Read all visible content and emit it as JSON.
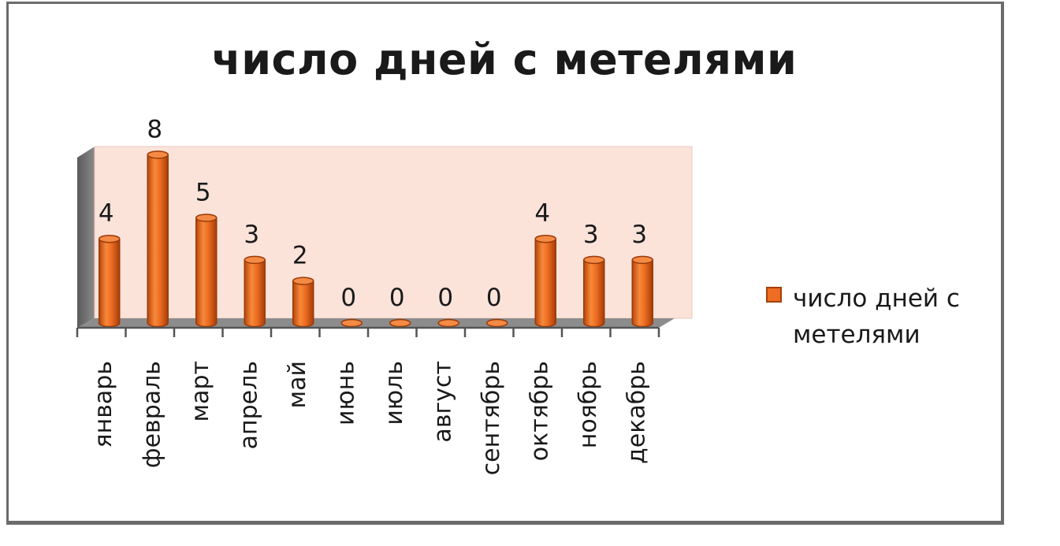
{
  "chart_data": {
    "type": "bar",
    "title": "число дней с метелями",
    "categories": [
      "январь",
      "февраль",
      "март",
      "апрель",
      "май",
      "июнь",
      "июль",
      "август",
      "сентябрь",
      "октябрь",
      "ноябрь",
      "декабрь"
    ],
    "series": [
      {
        "name": "число дней с метелями",
        "values": [
          4,
          8,
          5,
          3,
          2,
          0,
          0,
          0,
          0,
          4,
          3,
          3
        ]
      }
    ],
    "ylim": [
      0,
      8
    ],
    "grid": false,
    "legend_position": "right",
    "bar_color": "#ee6d22",
    "wall_color": "#fbe3da"
  }
}
